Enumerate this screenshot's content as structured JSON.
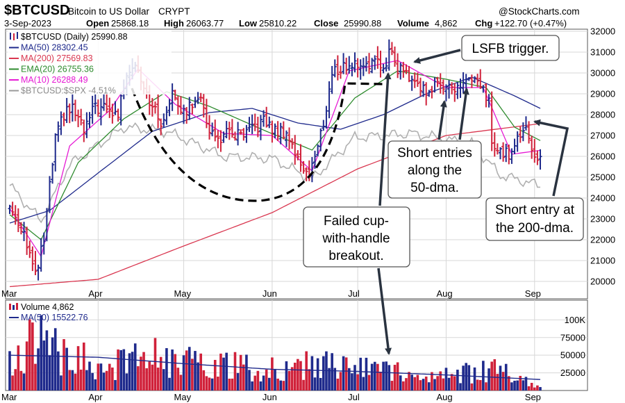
{
  "header": {
    "symbol": "$BTCUSD",
    "name": "Bitcoin to US Dollar",
    "exchange": "CRYPT",
    "watermark": "@StockCharts.com",
    "date": "3-Sep-2023",
    "open_label": "Open",
    "open": "25868.18",
    "high_label": "High",
    "high": "26063.77",
    "low_label": "Low",
    "low": "25810.22",
    "close_label": "Close",
    "close": "25990.88",
    "volume_label": "Volume",
    "volume": "4,862",
    "chg_label": "Chg",
    "chg": "+122.70 (+0.47%)"
  },
  "legend": [
    {
      "text": "$BTCUSD (Daily) 25990.88",
      "color": "#000000",
      "swatch": "bars"
    },
    {
      "text": "MA(50) 28302.45",
      "color": "#1f2a8c",
      "swatch": "line"
    },
    {
      "text": "MA(200) 27569.83",
      "color": "#d9364f",
      "swatch": "line"
    },
    {
      "text": "EMA(20) 26755.36",
      "color": "#2e8b2e",
      "swatch": "line"
    },
    {
      "text": "MA(10) 26288.49",
      "color": "#e61ad4",
      "swatch": "line"
    },
    {
      "text": "$BTCUSD:$SPX -4.51%",
      "color": "#9a9a9a",
      "swatch": "line"
    }
  ],
  "volume_legend": [
    {
      "text": "Volume 4,862",
      "color": "#000000",
      "swatch": "bars"
    },
    {
      "text": "MA(50) 15522.76",
      "color": "#1f2a8c",
      "swatch": "line"
    }
  ],
  "annotations": {
    "lsfb": "LSFB trigger.",
    "short50": [
      "Short entries",
      "along the",
      "50-dma."
    ],
    "short200": [
      "Short entry at",
      "the 200-dma."
    ],
    "failed": [
      "Failed cup-",
      "with-handle",
      "breakout."
    ]
  },
  "colors": {
    "up": "#1f2a8c",
    "down": "#d0213a",
    "grid": "#d7d7d7",
    "cup": "#000000",
    "arrow": "#2a3340"
  },
  "chart_data": [
    {
      "type": "ohlc",
      "title": "$BTCUSD Bitcoin to US Dollar",
      "x_labels": [
        "Mar",
        "Apr",
        "May",
        "Jun",
        "Jul",
        "Aug",
        "Sep"
      ],
      "ylim": [
        19500,
        32200
      ],
      "y_ticks": [
        20000,
        21000,
        22000,
        23000,
        24000,
        25000,
        26000,
        27000,
        28000,
        29000,
        30000,
        31000,
        32000
      ],
      "price_keypoints": [
        {
          "date": "2023-03-01",
          "close": 23600
        },
        {
          "date": "2023-03-06",
          "close": 22400
        },
        {
          "date": "2023-03-10",
          "close": 20200
        },
        {
          "date": "2023-03-13",
          "close": 22000
        },
        {
          "date": "2023-03-15",
          "close": 24500
        },
        {
          "date": "2023-03-17",
          "close": 26800
        },
        {
          "date": "2023-03-20",
          "close": 28000
        },
        {
          "date": "2023-03-23",
          "close": 28300
        },
        {
          "date": "2023-03-27",
          "close": 27200
        },
        {
          "date": "2023-03-31",
          "close": 28400
        },
        {
          "date": "2023-04-04",
          "close": 28200
        },
        {
          "date": "2023-04-08",
          "close": 28000
        },
        {
          "date": "2023-04-11",
          "close": 30100
        },
        {
          "date": "2023-04-14",
          "close": 30500
        },
        {
          "date": "2023-04-17",
          "close": 29500
        },
        {
          "date": "2023-04-20",
          "close": 28300
        },
        {
          "date": "2023-04-24",
          "close": 27500
        },
        {
          "date": "2023-04-27",
          "close": 29300
        },
        {
          "date": "2023-05-01",
          "close": 28000
        },
        {
          "date": "2023-05-06",
          "close": 29000
        },
        {
          "date": "2023-05-09",
          "close": 27700
        },
        {
          "date": "2023-05-12",
          "close": 26800
        },
        {
          "date": "2023-05-17",
          "close": 27100
        },
        {
          "date": "2023-05-22",
          "close": 26900
        },
        {
          "date": "2023-05-29",
          "close": 27700
        },
        {
          "date": "2023-06-02",
          "close": 27200
        },
        {
          "date": "2023-06-06",
          "close": 27200
        },
        {
          "date": "2023-06-10",
          "close": 25800
        },
        {
          "date": "2023-06-14",
          "close": 25200
        },
        {
          "date": "2023-06-17",
          "close": 26400
        },
        {
          "date": "2023-06-20",
          "close": 28300
        },
        {
          "date": "2023-06-22",
          "close": 30000
        },
        {
          "date": "2023-06-26",
          "close": 30300
        },
        {
          "date": "2023-06-30",
          "close": 30400
        },
        {
          "date": "2023-07-05",
          "close": 30500
        },
        {
          "date": "2023-07-10",
          "close": 30300
        },
        {
          "date": "2023-07-13",
          "close": 31300
        },
        {
          "date": "2023-07-14",
          "close": 30300
        },
        {
          "date": "2023-07-19",
          "close": 29900
        },
        {
          "date": "2023-07-24",
          "close": 29200
        },
        {
          "date": "2023-07-28",
          "close": 29300
        },
        {
          "date": "2023-08-01",
          "close": 29600
        },
        {
          "date": "2023-08-04",
          "close": 29100
        },
        {
          "date": "2023-08-08",
          "close": 29700
        },
        {
          "date": "2023-08-12",
          "close": 29400
        },
        {
          "date": "2023-08-16",
          "close": 28700
        },
        {
          "date": "2023-08-17",
          "close": 26600
        },
        {
          "date": "2023-08-20",
          "close": 26100
        },
        {
          "date": "2023-08-24",
          "close": 26200
        },
        {
          "date": "2023-08-29",
          "close": 27700
        },
        {
          "date": "2023-09-01",
          "close": 25800
        },
        {
          "date": "2023-09-03",
          "close": 25990
        }
      ],
      "series": [
        {
          "name": "MA(50)",
          "last": 28302.45,
          "points": [
            {
              "date": "2023-03-01",
              "value": 22800
            },
            {
              "date": "2023-03-15",
              "value": 23400
            },
            {
              "date": "2023-04-01",
              "value": 25200
            },
            {
              "date": "2023-04-20",
              "value": 27200
            },
            {
              "date": "2023-05-10",
              "value": 28100
            },
            {
              "date": "2023-05-25",
              "value": 28300
            },
            {
              "date": "2023-06-10",
              "value": 27600
            },
            {
              "date": "2023-06-25",
              "value": 27300
            },
            {
              "date": "2023-07-10",
              "value": 28000
            },
            {
              "date": "2023-07-25",
              "value": 29000
            },
            {
              "date": "2023-08-10",
              "value": 29800
            },
            {
              "date": "2023-08-25",
              "value": 28900
            },
            {
              "date": "2023-09-03",
              "value": 28300
            }
          ]
        },
        {
          "name": "MA(200)",
          "last": 27569.83,
          "points": [
            {
              "date": "2023-03-01",
              "value": 19750
            },
            {
              "date": "2023-04-01",
              "value": 20100
            },
            {
              "date": "2023-05-01",
              "value": 21700
            },
            {
              "date": "2023-06-01",
              "value": 23300
            },
            {
              "date": "2023-07-01",
              "value": 25400
            },
            {
              "date": "2023-08-01",
              "value": 27000
            },
            {
              "date": "2023-09-03",
              "value": 27570
            }
          ]
        },
        {
          "name": "EMA(20)",
          "last": 26755.36,
          "points": [
            {
              "date": "2023-03-01",
              "value": 23200
            },
            {
              "date": "2023-03-12",
              "value": 22000
            },
            {
              "date": "2023-03-25",
              "value": 25700
            },
            {
              "date": "2023-04-10",
              "value": 27800
            },
            {
              "date": "2023-04-25",
              "value": 29100
            },
            {
              "date": "2023-05-10",
              "value": 28400
            },
            {
              "date": "2023-05-30",
              "value": 27200
            },
            {
              "date": "2023-06-15",
              "value": 26300
            },
            {
              "date": "2023-06-30",
              "value": 28800
            },
            {
              "date": "2023-07-15",
              "value": 30100
            },
            {
              "date": "2023-08-01",
              "value": 29700
            },
            {
              "date": "2023-08-15",
              "value": 29300
            },
            {
              "date": "2023-08-25",
              "value": 27400
            },
            {
              "date": "2023-09-03",
              "value": 26755
            }
          ]
        },
        {
          "name": "MA(10)",
          "last": 26288.49,
          "points": [
            {
              "date": "2023-03-01",
              "value": 23500
            },
            {
              "date": "2023-03-12",
              "value": 21200
            },
            {
              "date": "2023-03-22",
              "value": 26500
            },
            {
              "date": "2023-04-05",
              "value": 28200
            },
            {
              "date": "2023-04-15",
              "value": 30200
            },
            {
              "date": "2023-04-28",
              "value": 28500
            },
            {
              "date": "2023-05-15",
              "value": 27100
            },
            {
              "date": "2023-06-01",
              "value": 27000
            },
            {
              "date": "2023-06-15",
              "value": 25300
            },
            {
              "date": "2023-06-28",
              "value": 30100
            },
            {
              "date": "2023-07-15",
              "value": 30600
            },
            {
              "date": "2023-08-01",
              "value": 29300
            },
            {
              "date": "2023-08-14",
              "value": 29300
            },
            {
              "date": "2023-08-24",
              "value": 26100
            },
            {
              "date": "2023-09-03",
              "value": 26288
            }
          ]
        },
        {
          "name": "$BTCUSD:$SPX",
          "last_change": "-4.51%",
          "points": [
            {
              "date": "2023-03-01",
              "value": 24600
            },
            {
              "date": "2023-03-12",
              "value": 22900
            },
            {
              "date": "2023-03-22",
              "value": 25600
            },
            {
              "date": "2023-04-10",
              "value": 27400
            },
            {
              "date": "2023-04-25",
              "value": 27200
            },
            {
              "date": "2023-05-15",
              "value": 26000
            },
            {
              "date": "2023-06-01",
              "value": 25900
            },
            {
              "date": "2023-06-15",
              "value": 24900
            },
            {
              "date": "2023-06-30",
              "value": 26900
            },
            {
              "date": "2023-07-20",
              "value": 27100
            },
            {
              "date": "2023-08-10",
              "value": 26600
            },
            {
              "date": "2023-08-20",
              "value": 25100
            },
            {
              "date": "2023-09-03",
              "value": 24600
            }
          ]
        }
      ]
    },
    {
      "type": "bar",
      "title": "Volume",
      "ylim": [
        0,
        120000
      ],
      "y_ticks": [
        25000,
        50000,
        75000,
        100000
      ],
      "y_tick_labels": [
        "25000",
        "50000",
        "75000",
        "100K"
      ],
      "volume_keypoints": [
        {
          "date": "2023-03-01",
          "value": 45000
        },
        {
          "date": "2023-03-10",
          "value": 82000
        },
        {
          "date": "2023-03-20",
          "value": 55000
        },
        {
          "date": "2023-04-05",
          "value": 38000
        },
        {
          "date": "2023-04-20",
          "value": 52000
        },
        {
          "date": "2023-05-10",
          "value": 40000
        },
        {
          "date": "2023-06-01",
          "value": 32000
        },
        {
          "date": "2023-06-20",
          "value": 42000
        },
        {
          "date": "2023-07-10",
          "value": 28000
        },
        {
          "date": "2023-08-01",
          "value": 22000
        },
        {
          "date": "2023-08-18",
          "value": 32000
        },
        {
          "date": "2023-09-03",
          "value": 4862
        }
      ],
      "ma50_points": [
        {
          "date": "2023-03-01",
          "value": 50000
        },
        {
          "date": "2023-04-01",
          "value": 47000
        },
        {
          "date": "2023-05-01",
          "value": 38000
        },
        {
          "date": "2023-06-01",
          "value": 30000
        },
        {
          "date": "2023-07-01",
          "value": 27000
        },
        {
          "date": "2023-08-01",
          "value": 22000
        },
        {
          "date": "2023-09-03",
          "value": 15523
        }
      ]
    }
  ]
}
